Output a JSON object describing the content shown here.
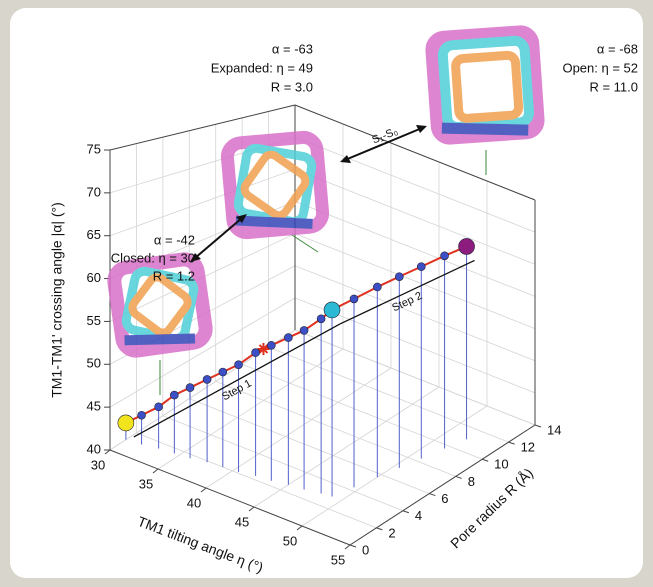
{
  "chart_data": {
    "type": "scatter3d",
    "x_label": "TM1 tilting angle η (°)",
    "y_label": "Pore radius R (Å)",
    "z_label": "TM1-TM1' crossing angle |α| (°)",
    "xlim": [
      30,
      55
    ],
    "xticks": [
      30,
      35,
      40,
      45,
      50,
      55
    ],
    "ylim": [
      0,
      14
    ],
    "yticks": [
      0,
      2,
      4,
      6,
      8,
      10,
      12,
      14
    ],
    "zlim": [
      40,
      75
    ],
    "zticks": [
      40,
      45,
      50,
      55,
      60,
      65,
      70,
      75
    ],
    "grid": true,
    "line_color": "#e0301e",
    "series": [
      {
        "x": [
          30,
          31.5,
          33,
          34.5,
          36,
          37.5,
          39,
          40.5,
          42,
          43.5,
          45,
          46.5,
          48,
          49,
          49.5,
          50,
          50.5,
          51,
          51.5,
          52
        ],
        "y": [
          1.2,
          1.3,
          1.5,
          1.6,
          1.7,
          1.9,
          2.0,
          2.1,
          2.3,
          2.4,
          2.6,
          2.7,
          2.9,
          3.0,
          4.3,
          5.7,
          7.0,
          8.3,
          9.7,
          11.0
        ],
        "z": [
          42,
          43.5,
          45,
          47,
          48.5,
          50,
          51.5,
          53,
          55,
          56.5,
          58,
          59.5,
          61.5,
          63,
          63.8,
          64.7,
          65.5,
          66.3,
          67.2,
          68
        ],
        "colors": [
          "#f2e41c",
          "#3d4fc4",
          "#3d4fc4",
          "#3d4fc4",
          "#3d4fc4",
          "#3d4fc4",
          "#3d4fc4",
          "#3d4fc4",
          "#3d4fc4",
          "#3d4fc4",
          "#3d4fc4",
          "#3d4fc4",
          "#3d4fc4",
          "#2bb9d4",
          "#3d4fc4",
          "#3d4fc4",
          "#3d4fc4",
          "#3d4fc4",
          "#3d4fc4",
          "#8c1c7e"
        ]
      }
    ],
    "annotations": {
      "closed": [
        "α = -42",
        "Closed: η = 30",
        "R = 1.2"
      ],
      "expanded": [
        "α = -63",
        "Expanded: η = 49",
        "R = 3.0"
      ],
      "open": [
        "α = -68",
        "Open: η = 52",
        "R = 11.0"
      ],
      "transition": "S₁-S₀",
      "step1": "Step 1",
      "step2": "Step 2"
    }
  }
}
